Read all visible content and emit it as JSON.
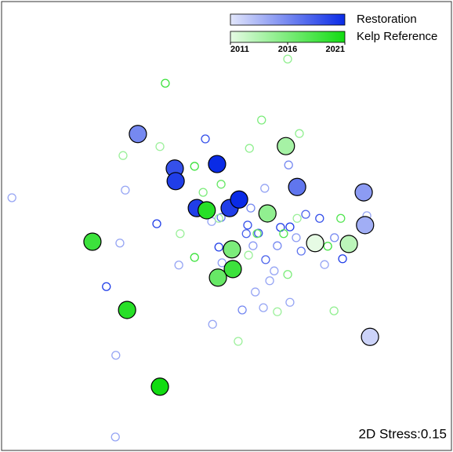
{
  "chart_data": {
    "type": "scatter",
    "xlim": [
      0,
      100
    ],
    "ylim": [
      0,
      100
    ],
    "colorbar_lim": [
      2011,
      2021
    ],
    "colorbar_ticks": [
      2011,
      2016,
      2021
    ],
    "annotation": "2D Stress:0.15",
    "series": [
      {
        "name": "Restoration",
        "color_range": [
          "#e2e6fb",
          "#0a2be6"
        ],
        "x": [
          2.3,
          45.3,
          27.5,
          34.5,
          26.3,
          23.3,
          25.4,
          25.3,
          39.4,
          46.7,
          48.8,
          54.7,
          55.4,
          58.5,
          54.4,
          57.1,
          55.9,
          58.7,
          61.3,
          62.0,
          64.1,
          65.5,
          67.6,
          70.7,
          66.6,
          71.8,
          75.8,
          74.0,
          81.2,
          63.8,
          60.6,
          59.6,
          56.4,
          53.5,
          58.2,
          64.1,
          46.9,
          48.3,
          49.0
        ],
        "y": [
          56.3,
          69.4,
          58.0,
          50.5,
          46.2,
          36.5,
          21.2,
          3.0,
          41.3,
          51.0,
          51.9,
          50.2,
          54.0,
          58.4,
          48.3,
          48.4,
          45.6,
          42.5,
          45.6,
          49.7,
          49.8,
          47.4,
          52.6,
          51.7,
          44.4,
          41.4,
          42.7,
          47.4,
          52.3,
          63.6,
          40.0,
          37.8,
          35.3,
          31.3,
          31.8,
          33.0,
          28.1,
          45.3,
          41.8
        ],
        "year": [
          2012,
          2019,
          2013,
          2020,
          2012,
          2020,
          2011,
          2011,
          2012,
          2014,
          2017,
          2019,
          2016,
          2014,
          2018,
          2019,
          2015,
          2018,
          2016,
          2020,
          2020,
          2015,
          2018,
          2019,
          2017,
          2014,
          2020,
          2016,
          2012,
          2016,
          2013,
          2012,
          2013,
          2016,
          2014,
          2012,
          2013,
          2020,
          2015
        ],
        "centroid_x": [
          30.3,
          38.5,
          38.7,
          47.9,
          43.4,
          50.7,
          52.8,
          65.7,
          80.5,
          80.8,
          81.9
        ],
        "centroid_y": [
          70.5,
          62.8,
          60.0,
          63.8,
          54.0,
          54.0,
          55.9,
          58.7,
          57.5,
          50.2,
          25.3
        ],
        "centroid_year": [
          2016,
          2019,
          2020,
          2021,
          2020,
          2020,
          2021,
          2017,
          2015,
          2014,
          2012
        ]
      },
      {
        "name": "Kelp Reference",
        "color_range": [
          "#e6fbe4",
          "#12dc12"
        ],
        "x": [
          36.4,
          63.6,
          57.8,
          66.2,
          55.1,
          35.2,
          27.0,
          42.9,
          44.8,
          48.8,
          48.3,
          39.7,
          42.9,
          47.6,
          54.9,
          59.1,
          62.7,
          65.7,
          72.5,
          75.4,
          63.6,
          61.3,
          73.9,
          52.6,
          56.8
        ],
        "y": [
          81.8,
          87.2,
          73.6,
          70.6,
          67.3,
          67.7,
          65.7,
          63.3,
          57.5,
          59.3,
          51.7,
          48.3,
          43.0,
          38.1,
          43.5,
          52.3,
          48.3,
          51.7,
          45.5,
          51.7,
          39.2,
          30.9,
          31.1,
          24.3,
          48.3
        ],
        "year": [
          2019,
          2015,
          2016,
          2015,
          2015,
          2013,
          2014,
          2019,
          2016,
          2017,
          2014,
          2014,
          2019,
          2015,
          2013,
          2016,
          2018,
          2014,
          2019,
          2018,
          2016,
          2012,
          2015,
          2013,
          2017
        ],
        "centroid_x": [
          63.2,
          59.1,
          45.6,
          20.2,
          51.2,
          48.1,
          51.4,
          27.9,
          35.2,
          69.7,
          77.2
        ],
        "centroid_y": [
          67.8,
          52.8,
          53.5,
          46.5,
          44.8,
          38.5,
          40.4,
          31.3,
          14.2,
          46.2,
          46.0
        ],
        "centroid_year": [
          2014,
          2015,
          2020,
          2019,
          2016,
          2017,
          2019,
          2020,
          2021,
          2011,
          2013
        ]
      }
    ]
  }
}
